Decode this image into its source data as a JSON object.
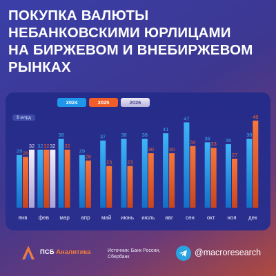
{
  "title": "ПОКУПКА ВАЛЮТЫ\nНЕБАНКОВСКИМИ ЮРЛИЦАМИ\nНА БИРЖЕВОМ И ВНЕБИРЖЕВОМ\nРЫНКАХ",
  "unit": "$ млрд",
  "colors": {
    "2024": "#1e96ea",
    "2025": "#ef5e28",
    "2026": "#d8d5ef"
  },
  "chart_data": {
    "type": "bar",
    "categories": [
      "янв",
      "фев",
      "мар",
      "апр",
      "май",
      "июнь",
      "июль",
      "авг",
      "сен",
      "окт",
      "ноя",
      "дек"
    ],
    "series": [
      {
        "name": "2024",
        "values": [
          29,
          32,
          38,
          29,
          37,
          38,
          38,
          41,
          47,
          36,
          35,
          38
        ]
      },
      {
        "name": "2025",
        "values": [
          28,
          32,
          32,
          26,
          23,
          23,
          30,
          30,
          34,
          33,
          27,
          48
        ]
      },
      {
        "name": "2026",
        "values": [
          32,
          32,
          null,
          null,
          null,
          null,
          null,
          null,
          null,
          null,
          null,
          null
        ]
      }
    ],
    "ylabel": "$ млрд",
    "legend": "top-center"
  },
  "footer": {
    "logo_text": "ПСБ",
    "logo_accent": "Аналитика",
    "source": "Источник: Банк России, Сбербанк",
    "handle": "@macroresearch",
    "logo_icon": "psb-logo-icon",
    "telegram_icon": "telegram-icon"
  }
}
